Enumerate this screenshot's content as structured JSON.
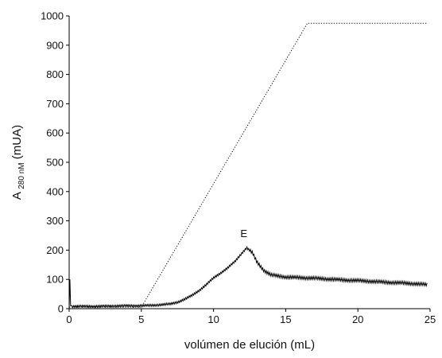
{
  "chart_data": {
    "type": "line",
    "title": "",
    "xlabel": "volúmen de elución (mL)",
    "ylabel": {
      "main": "A",
      "subscript": "280 nM",
      "suffix": " (mUA)"
    },
    "xlim": [
      0,
      25
    ],
    "ylim": [
      0,
      1000
    ],
    "x_ticks": [
      0,
      5,
      10,
      15,
      20,
      25
    ],
    "y_ticks": [
      0,
      100,
      200,
      300,
      400,
      500,
      600,
      700,
      800,
      900,
      1000
    ],
    "grid": false,
    "legend": "none",
    "series": [
      {
        "style": "solid",
        "color": "#000000",
        "noisy": true,
        "x": [
          0,
          0.05,
          0.1,
          0.2,
          1,
          2,
          3,
          4,
          5,
          6,
          7,
          7.5,
          8,
          8.5,
          9,
          9.5,
          10,
          10.5,
          11,
          11.5,
          12,
          12.3,
          12.7,
          13,
          13.5,
          14,
          15,
          16,
          17,
          18,
          19,
          20,
          21,
          22,
          23,
          24,
          24.8
        ],
        "y": [
          5,
          100,
          10,
          8,
          8,
          8,
          9,
          10,
          10,
          12,
          16,
          22,
          32,
          45,
          62,
          82,
          105,
          122,
          140,
          162,
          192,
          208,
          190,
          160,
          130,
          115,
          108,
          106,
          104,
          101,
          98,
          96,
          93,
          90,
          88,
          85,
          82
        ]
      },
      {
        "style": "dotted",
        "color": "#000000",
        "x": [
          0,
          5,
          16.5,
          24.8
        ],
        "y": [
          5,
          5,
          975,
          975
        ]
      }
    ],
    "annotations": [
      {
        "text": "E",
        "x": 12.1,
        "y": 245
      }
    ]
  }
}
